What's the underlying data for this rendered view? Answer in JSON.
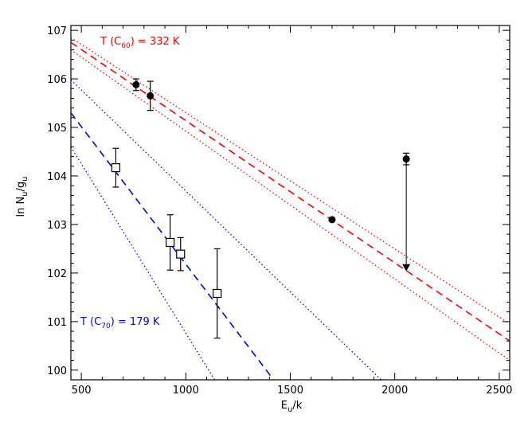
{
  "chart_data": {
    "type": "scatter",
    "xlabel": "E_u/k",
    "ylabel": "ln N_u/g_u",
    "xlim": [
      450,
      2550
    ],
    "ylim": [
      99.8,
      107.1
    ],
    "x_ticks": [
      500,
      1000,
      1500,
      2000,
      2500
    ],
    "y_ticks": [
      100,
      101,
      102,
      103,
      104,
      105,
      106,
      107
    ],
    "grid": false,
    "series": [
      {
        "name": "C60",
        "color": "#ff0000",
        "marker": "filled-circle",
        "points": [
          {
            "x": 762,
            "y": 105.88,
            "err": 0.12
          },
          {
            "x": 830,
            "y": 105.65,
            "err": 0.3
          },
          {
            "x": 1700,
            "y": 103.1,
            "err": 0
          },
          {
            "x": 2055,
            "y": 104.35,
            "err": 0.12
          }
        ],
        "upper_limit": {
          "x": 2055,
          "from": 104.35,
          "to": 102.1
        },
        "fit": {
          "x": [
            450,
            2550
          ],
          "y": [
            106.75,
            100.6
          ]
        },
        "fit_bounds": [
          {
            "x": [
              450,
              2550
            ],
            "y": [
              106.85,
              100.95
            ]
          },
          {
            "x": [
              450,
              2550
            ],
            "y": [
              106.6,
              100.2
            ]
          }
        ]
      },
      {
        "name": "C70",
        "color": "#0000ff",
        "marker": "open-square",
        "points": [
          {
            "x": 665,
            "y": 104.17,
            "err": 0.4
          },
          {
            "x": 925,
            "y": 102.63,
            "err": 0.57
          },
          {
            "x": 975,
            "y": 102.39,
            "err": 0.34
          },
          {
            "x": 1150,
            "y": 101.58,
            "err": 0.92
          }
        ],
        "fit": {
          "x": [
            450,
            1420
          ],
          "y": [
            105.3,
            99.8
          ]
        },
        "fit_bounds": [
          {
            "x": [
              450,
              1935
            ],
            "y": [
              105.98,
              99.8
            ]
          },
          {
            "x": [
              450,
              1138
            ],
            "y": [
              104.6,
              99.8
            ]
          }
        ]
      }
    ],
    "annotations": [
      {
        "id": "c60",
        "prefix": "T (C",
        "sub": "60",
        "suffix": ") = 332 K",
        "color": "#ff0000"
      },
      {
        "id": "c70",
        "prefix": "T (C",
        "sub": "70",
        "suffix": ") = 179 K",
        "color": "#0000ff"
      }
    ]
  }
}
